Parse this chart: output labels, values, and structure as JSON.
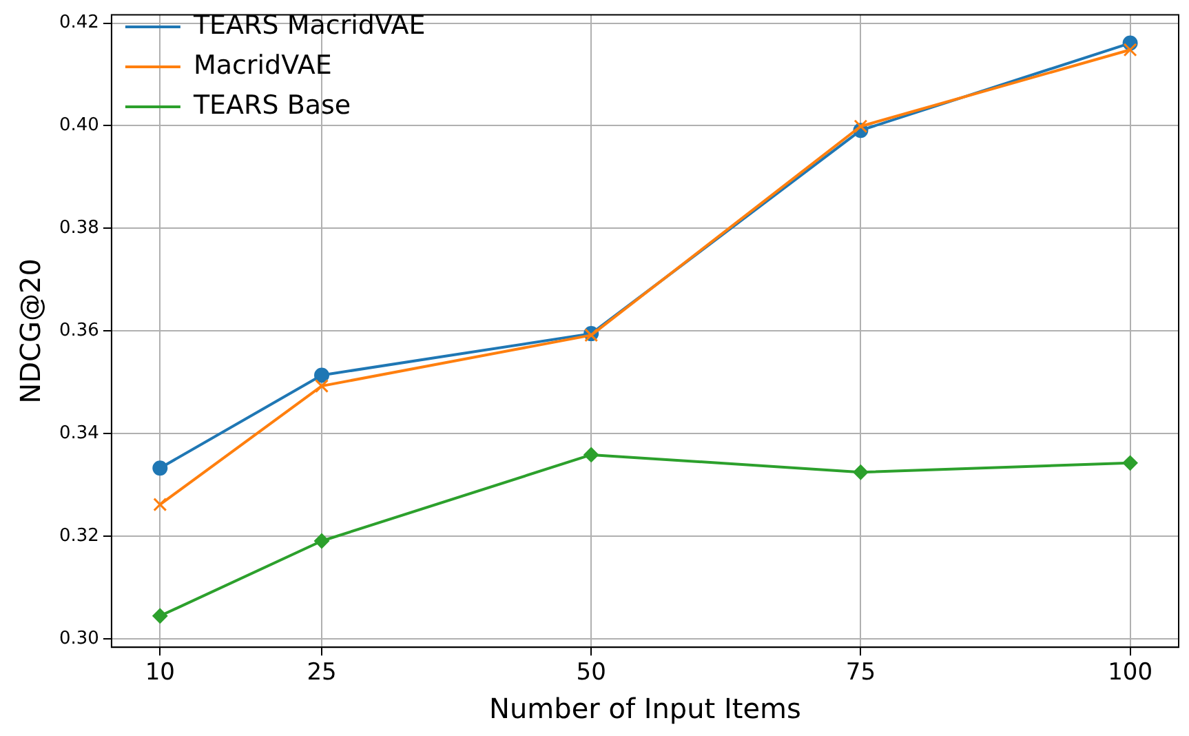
{
  "chart_data": {
    "type": "line",
    "xlabel": "Number of Input Items",
    "ylabel": "NDCG@20",
    "x": [
      10,
      25,
      50,
      75,
      100
    ],
    "series": [
      {
        "name": "TEARS MacridVAE",
        "color": "#1f77b4",
        "marker": "circle",
        "values": [
          0.3333,
          0.3514,
          0.3595,
          0.3991,
          0.4161
        ]
      },
      {
        "name": "MacridVAE",
        "color": "#ff7f0e",
        "marker": "cross",
        "values": [
          0.3262,
          0.3493,
          0.3592,
          0.3999,
          0.4148
        ]
      },
      {
        "name": "TEARS Base",
        "color": "#2ca02c",
        "marker": "diamond",
        "values": [
          0.3045,
          0.3191,
          0.3359,
          0.3325,
          0.3343
        ]
      }
    ],
    "xlim": [
      5.5,
      104.5
    ],
    "xticks": [
      10,
      25,
      50,
      75,
      100
    ],
    "ylim": [
      0.2984,
      0.4216
    ],
    "yticks": [
      {
        "value": 0.3,
        "label": "0.30"
      },
      {
        "value": 0.32,
        "label": "0.32"
      },
      {
        "value": 0.34,
        "label": "0.34"
      },
      {
        "value": 0.36,
        "label": "0.36"
      },
      {
        "value": 0.38,
        "label": "0.38"
      },
      {
        "value": 0.4,
        "label": "0.40"
      },
      {
        "value": 0.42,
        "label": "0.42"
      }
    ],
    "grid": true,
    "legend": "top left",
    "line_style": "solid"
  }
}
